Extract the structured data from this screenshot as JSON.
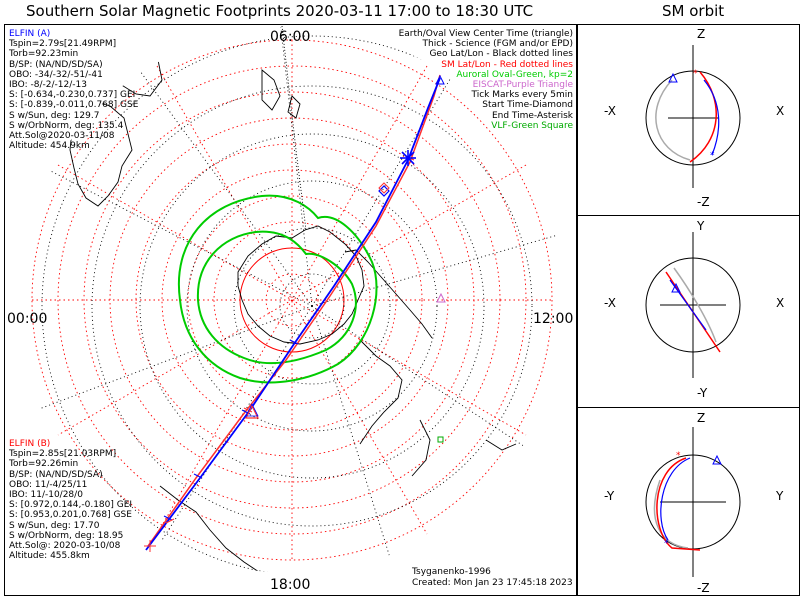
{
  "title": "Southern Solar Magnetic Footprints 2020-03-11 17:00 to 18:30 UTC",
  "orbit_title": "SM orbit",
  "colors": {
    "elfin_a": "#0000ff",
    "elfin_b": "#ff0000",
    "oval": "#00cc00",
    "eiscat": "#cc66cc",
    "vlf": "#00aa00",
    "grid_orbit_gray": "#aaaaaa"
  },
  "map": {
    "mlt_labels": {
      "top": "06:00",
      "bottom": "18:00",
      "left": "00:00",
      "right": "12:00"
    },
    "legend": [
      {
        "text": "Earth/Oval View Center Time (triangle)",
        "color": "#000000"
      },
      {
        "text": "Thick - Science (FGM and/or EPD)",
        "color": "#000000"
      },
      {
        "text": "Geo Lat/Lon - Black dotted lines",
        "color": "#000000"
      },
      {
        "text": "SM Lat/Lon - Red dotted lines",
        "color": "#ff0000"
      },
      {
        "text": "Auroral Oval-Green, kp=2",
        "color": "#00cc00"
      },
      {
        "text": "EISCAT-Purple Triangle",
        "color": "#cc66cc"
      },
      {
        "text": "Tick Marks every 5min",
        "color": "#000000"
      },
      {
        "text": "Start Time-Diamond",
        "color": "#000000"
      },
      {
        "text": "End Time-Asterisk",
        "color": "#000000"
      },
      {
        "text": "VLF-Green Square",
        "color": "#00aa00"
      }
    ],
    "elfin_a": {
      "name": "ELFIN (A)",
      "lines": [
        "Tspin=2.79s[21.49RPM]",
        "Torb=92.23min",
        "B/SP: (NA/ND/SD/SA)",
        "OBO: -34/-32/-51/-41",
        "IBO: -8/-2/-12/-13",
        "S: [-0.634,-0.230,0.737] GEI",
        "S: [-0.839,-0.011,0.768] GSE",
        "S w/Sun, deg: 129.7",
        "S w/OrbNorm, deg: 135.4",
        "Att.Sol@2020-03-11/08",
        "Altitude: 454.9km"
      ]
    },
    "elfin_b": {
      "name": "ELFIN (B)",
      "lines": [
        "Tspin=2.85s[21.03RPM]",
        "Torb=92.26min",
        "B/SP: (NA/ND/SD/SA)",
        "OBO: 11/-4/25/11",
        "IBO: 11/-10/28/0",
        "S: [0.972,0.144,-0.180] GEI",
        "S: [0.953,0.201,0.768] GSE",
        "S w/Sun, deg: 17.70",
        "S w/OrbNorm, deg: 18.95",
        "Att.Sol@: 2020-03-10/08",
        "Altitude: 455.8km"
      ]
    },
    "credit": "Tsyganenko-1996",
    "created": "Created: Mon Jan 23 17:45:18 2023"
  },
  "orbit_panels": [
    {
      "top": "Z",
      "bottom": "-Z",
      "left": "-X",
      "right": "X"
    },
    {
      "top": "Y",
      "bottom": "-Y",
      "left": "-X",
      "right": "X"
    },
    {
      "top": "Z",
      "bottom": "-Z",
      "left": "-Y",
      "right": "Y"
    }
  ]
}
